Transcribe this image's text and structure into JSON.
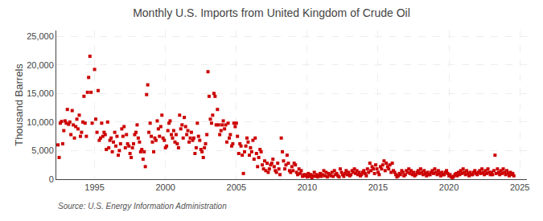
{
  "chart_data": {
    "type": "scatter",
    "title": "Monthly U.S. Imports from United Kingdom of Crude Oil",
    "ylabel": "Thousand Barrels",
    "annotations": [
      "Source: U.S. Energy Information Administration"
    ],
    "color": "#cc0000",
    "marker": "square",
    "grid": true,
    "xlim": [
      1992.3,
      2025.5
    ],
    "xticks": [
      1995,
      2000,
      2005,
      2010,
      2015,
      2020,
      2025
    ],
    "ylim": [
      0,
      26000
    ],
    "yticks": [
      0,
      {
        "value": 5000,
        "label": "5,000"
      },
      {
        "value": 10000,
        "label": "10,000"
      },
      {
        "value": 15000,
        "label": "15,000"
      },
      {
        "value": 20000,
        "label": "20,000"
      },
      {
        "value": 25000,
        "label": "25,000"
      }
    ],
    "x": [
      1992.42,
      1992.5,
      1992.58,
      1992.67,
      1992.75,
      1992.83,
      1992.92,
      1993.0,
      1993.08,
      1993.17,
      1993.25,
      1993.33,
      1993.42,
      1993.5,
      1993.58,
      1993.67,
      1993.75,
      1993.83,
      1993.92,
      1994.0,
      1994.08,
      1994.17,
      1994.25,
      1994.33,
      1994.42,
      1994.5,
      1994.58,
      1994.67,
      1994.75,
      1994.83,
      1995.0,
      1995.08,
      1995.17,
      1995.25,
      1995.33,
      1995.42,
      1995.5,
      1995.58,
      1995.67,
      1995.75,
      1995.83,
      1995.92,
      1996.0,
      1996.08,
      1996.17,
      1996.25,
      1996.33,
      1996.42,
      1996.5,
      1996.58,
      1996.67,
      1996.75,
      1996.83,
      1996.92,
      1997.0,
      1997.08,
      1997.17,
      1997.25,
      1997.33,
      1997.42,
      1997.5,
      1997.58,
      1997.67,
      1997.75,
      1997.83,
      1997.92,
      1998.0,
      1998.08,
      1998.17,
      1998.25,
      1998.33,
      1998.42,
      1998.5,
      1998.58,
      1998.67,
      1998.75,
      1998.83,
      1998.92,
      1999.0,
      1999.08,
      1999.17,
      1999.25,
      1999.33,
      1999.42,
      1999.5,
      1999.58,
      1999.67,
      1999.75,
      1999.83,
      1999.92,
      2000.0,
      2000.08,
      2000.17,
      2000.25,
      2000.33,
      2000.42,
      2000.5,
      2000.58,
      2000.67,
      2000.75,
      2000.83,
      2000.92,
      2001.0,
      2001.08,
      2001.17,
      2001.25,
      2001.33,
      2001.42,
      2001.5,
      2001.58,
      2001.67,
      2001.75,
      2001.83,
      2001.92,
      2002.0,
      2002.08,
      2002.17,
      2002.25,
      2002.33,
      2002.42,
      2002.5,
      2002.58,
      2002.67,
      2002.75,
      2002.83,
      2002.92,
      2003.0,
      2003.08,
      2003.17,
      2003.25,
      2003.33,
      2003.42,
      2003.5,
      2003.58,
      2003.67,
      2003.75,
      2003.83,
      2003.92,
      2004.0,
      2004.08,
      2004.17,
      2004.25,
      2004.33,
      2004.42,
      2004.5,
      2004.58,
      2004.67,
      2004.75,
      2004.83,
      2004.92,
      2005.0,
      2005.08,
      2005.17,
      2005.25,
      2005.33,
      2005.42,
      2005.5,
      2005.58,
      2005.67,
      2005.75,
      2005.83,
      2005.92,
      2006.0,
      2006.08,
      2006.17,
      2006.25,
      2006.33,
      2006.42,
      2006.5,
      2006.58,
      2006.67,
      2006.75,
      2006.83,
      2006.92,
      2007.0,
      2007.08,
      2007.17,
      2007.25,
      2007.33,
      2007.42,
      2007.5,
      2007.58,
      2007.67,
      2007.75,
      2007.83,
      2007.92,
      2008.0,
      2008.08,
      2008.17,
      2008.25,
      2008.33,
      2008.42,
      2008.5,
      2008.58,
      2008.67,
      2008.75,
      2008.83,
      2008.92,
      2009.0,
      2009.08,
      2009.17,
      2009.25,
      2009.33,
      2009.42,
      2009.5,
      2009.58,
      2009.67,
      2009.75,
      2009.83,
      2009.92,
      2010.0,
      2010.08,
      2010.17,
      2010.25,
      2010.33,
      2010.42,
      2010.5,
      2010.58,
      2010.67,
      2010.75,
      2010.83,
      2010.92,
      2011.0,
      2011.08,
      2011.17,
      2011.25,
      2011.33,
      2011.42,
      2011.5,
      2011.58,
      2011.67,
      2011.75,
      2011.83,
      2011.92,
      2012.0,
      2012.08,
      2012.17,
      2012.25,
      2012.33,
      2012.42,
      2012.5,
      2012.58,
      2012.67,
      2012.75,
      2012.83,
      2012.92,
      2013.0,
      2013.08,
      2013.17,
      2013.25,
      2013.33,
      2013.42,
      2013.5,
      2013.58,
      2013.67,
      2013.75,
      2013.83,
      2013.92,
      2014.0,
      2014.08,
      2014.17,
      2014.25,
      2014.33,
      2014.42,
      2014.5,
      2014.58,
      2014.67,
      2014.75,
      2014.83,
      2014.92,
      2015.0,
      2015.08,
      2015.17,
      2015.25,
      2015.33,
      2015.42,
      2015.5,
      2015.58,
      2015.67,
      2015.75,
      2015.83,
      2015.92,
      2016.0,
      2016.08,
      2016.17,
      2016.25,
      2016.33,
      2016.42,
      2016.5,
      2016.58,
      2016.67,
      2016.75,
      2016.83,
      2016.92,
      2017.0,
      2017.08,
      2017.17,
      2017.25,
      2017.33,
      2017.42,
      2017.5,
      2017.58,
      2017.67,
      2017.75,
      2017.83,
      2017.92,
      2018.0,
      2018.08,
      2018.17,
      2018.25,
      2018.33,
      2018.42,
      2018.5,
      2018.58,
      2018.67,
      2018.75,
      2018.83,
      2018.92,
      2019.0,
      2019.08,
      2019.17,
      2019.25,
      2019.33,
      2019.42,
      2019.5,
      2019.58,
      2019.67,
      2019.75,
      2019.83,
      2019.92,
      2020.0,
      2020.08,
      2020.17,
      2020.25,
      2020.33,
      2020.42,
      2020.5,
      2020.58,
      2020.67,
      2020.75,
      2020.83,
      2020.92,
      2021.0,
      2021.08,
      2021.17,
      2021.25,
      2021.33,
      2021.42,
      2021.5,
      2021.58,
      2021.67,
      2021.75,
      2021.83,
      2021.92,
      2022.0,
      2022.08,
      2022.17,
      2022.25,
      2022.33,
      2022.42,
      2022.5,
      2022.58,
      2022.67,
      2022.75,
      2022.83,
      2022.92,
      2023.0,
      2023.08,
      2023.17,
      2023.25,
      2023.33,
      2023.42,
      2023.5,
      2023.58,
      2023.67,
      2023.75,
      2023.83,
      2023.92,
      2024.0,
      2024.08,
      2024.17,
      2024.25,
      2024.33,
      2024.42,
      2024.5,
      2024.58
    ],
    "values": [
      6000,
      3800,
      9800,
      10100,
      6200,
      8500,
      10200,
      9800,
      12200,
      9600,
      10000,
      7800,
      12000,
      9500,
      7200,
      9200,
      10500,
      8800,
      11200,
      7500,
      8200,
      10000,
      14500,
      9800,
      7500,
      15200,
      17800,
      21500,
      15200,
      9800,
      19200,
      10500,
      8200,
      15500,
      6800,
      7200,
      9800,
      7500,
      8200,
      7800,
      5200,
      10000,
      5500,
      6800,
      7200,
      4800,
      6500,
      8200,
      5800,
      7500,
      4200,
      5000,
      6200,
      8800,
      7500,
      9200,
      5500,
      7800,
      6200,
      5800,
      4500,
      3800,
      5500,
      6200,
      7800,
      8200,
      9500,
      7200,
      6500,
      4800,
      5200,
      3500,
      4800,
      2200,
      14800,
      16500,
      8200,
      9800,
      7500,
      6500,
      4800,
      7200,
      6800,
      10200,
      8800,
      7500,
      9200,
      11200,
      7200,
      6800,
      5500,
      5800,
      8500,
      9800,
      10200,
      7800,
      7200,
      8500,
      6500,
      7800,
      6200,
      5500,
      11200,
      8800,
      9500,
      7200,
      10800,
      9200,
      7800,
      8500,
      6500,
      7200,
      8200,
      6800,
      7200,
      4500,
      5500,
      9800,
      7500,
      6800,
      5200,
      4800,
      3800,
      5500,
      6200,
      7800,
      18800,
      14500,
      10500,
      9800,
      11200,
      15000,
      14500,
      9500,
      12200,
      9500,
      7800,
      8500,
      9500,
      10200,
      8800,
      9500,
      6500,
      9800,
      7200,
      7800,
      5800,
      6200,
      9800,
      9200,
      9800,
      7500,
      4500,
      6200,
      5800,
      4200,
      1000,
      4800,
      5800,
      7200,
      6500,
      4200,
      5500,
      4800,
      6800,
      3500,
      7200,
      4500,
      2200,
      3800,
      5200,
      4800,
      2500,
      1800,
      3200,
      1500,
      2800,
      1200,
      1800,
      2500,
      2800,
      3500,
      2200,
      1500,
      1200,
      2800,
      1800,
      800,
      7200,
      4800,
      3200,
      1800,
      2500,
      4200,
      2800,
      1500,
      1200,
      2200,
      1500,
      2800,
      2500,
      1200,
      800,
      1800,
      1000,
      1500,
      500,
      800,
      600,
      800,
      400,
      1000,
      500,
      800,
      200,
      600,
      1200,
      500,
      800,
      400,
      600,
      1000,
      500,
      800,
      1500,
      600,
      1200,
      400,
      1000,
      800,
      600,
      1200,
      500,
      1500,
      800,
      1000,
      600,
      400,
      1800,
      1200,
      800,
      500,
      1000,
      1500,
      800,
      1200,
      600,
      800,
      1500,
      1200,
      1800,
      1000,
      1500,
      800,
      1200,
      600,
      800,
      1200,
      1500,
      1000,
      600,
      1800,
      1200,
      2800,
      1500,
      2200,
      1800,
      1000,
      2500,
      1800,
      1200,
      800,
      2200,
      1800,
      2500,
      3200,
      1500,
      2800,
      2200,
      1800,
      2500,
      1200,
      2800,
      1500,
      1200,
      800,
      400,
      600,
      1000,
      800,
      1500,
      1200,
      600,
      800,
      1500,
      1200,
      1800,
      1000,
      1500,
      800,
      1200,
      600,
      800,
      1200,
      1500,
      1000,
      1800,
      1200,
      800,
      1500,
      1000,
      600,
      1200,
      800,
      800,
      1200,
      1500,
      1000,
      1800,
      1200,
      800,
      1500,
      1000,
      600,
      1200,
      800,
      800,
      1200,
      1500,
      1000,
      600,
      800,
      400,
      200,
      500,
      800,
      1000,
      600,
      1200,
      800,
      1500,
      1000,
      1800,
      1200,
      800,
      1500,
      1000,
      600,
      1200,
      800,
      800,
      1200,
      1500,
      1000,
      800,
      1200,
      1500,
      1000,
      1800,
      1200,
      800,
      1500,
      1000,
      1800,
      1200,
      800,
      1200,
      800,
      1500,
      4200,
      1000,
      1800,
      1200,
      800,
      1500,
      1000,
      1800,
      1200,
      800,
      1500,
      1000,
      600,
      1200,
      800,
      1000,
      600
    ]
  }
}
